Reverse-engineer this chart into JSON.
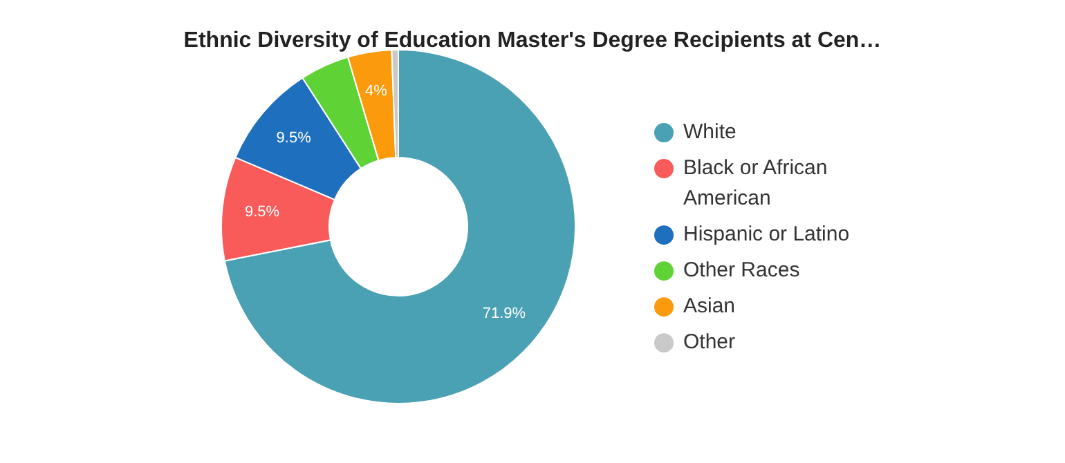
{
  "chart_data": {
    "type": "donut",
    "title": "Ethnic Diversity of Education Master's Degree Recipients at Cen…",
    "categories": [
      "White",
      "Black or African American",
      "Hispanic or Latino",
      "Other Races",
      "Asian",
      "Other"
    ],
    "values": [
      71.9,
      9.5,
      9.5,
      4.5,
      4,
      0.6
    ],
    "colors": [
      "#4aa1b3",
      "#f95a5a",
      "#1f6fbf",
      "#5fd335",
      "#fb9a0c",
      "#c9c9c9"
    ],
    "value_labels": [
      "71.9%",
      "9.5%",
      "9.5%",
      null,
      "4%",
      null
    ],
    "legend": "right"
  }
}
